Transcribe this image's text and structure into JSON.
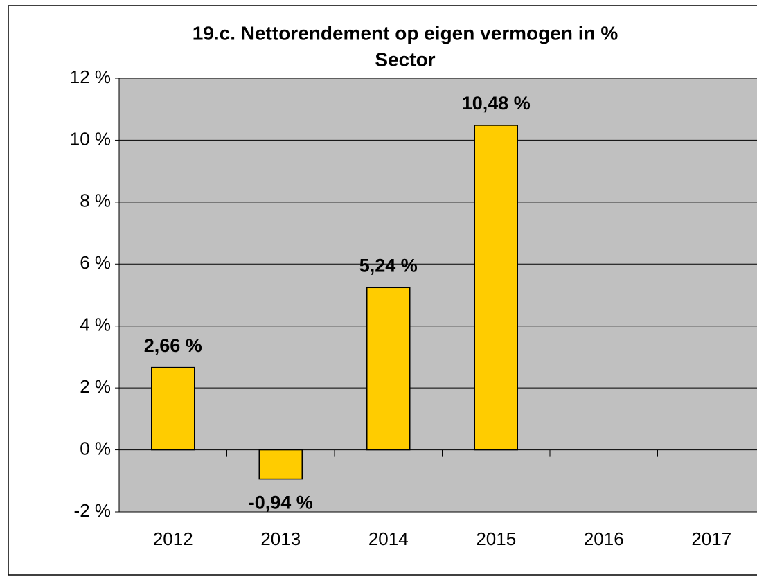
{
  "chart_data": {
    "type": "bar",
    "title": "19.c. Nettorendement op eigen vermogen in %",
    "subtitle": "Sector",
    "categories": [
      "2012",
      "2013",
      "2014",
      "2015",
      "2016",
      "2017"
    ],
    "values": [
      2.66,
      -0.94,
      5.24,
      10.48,
      null,
      null
    ],
    "value_labels": [
      "2,66 %",
      "-0,94 %",
      "5,24 %",
      "10,48 %",
      null,
      null
    ],
    "color": "#ffcc00",
    "background": "#c0c0c0",
    "ylim": [
      -2,
      12
    ],
    "yticks": [
      {
        "value": -2,
        "label": "-2 %"
      },
      {
        "value": 0,
        "label": "0 %"
      },
      {
        "value": 2,
        "label": "2 %"
      },
      {
        "value": 4,
        "label": "4 %"
      },
      {
        "value": 6,
        "label": "6 %"
      },
      {
        "value": 8,
        "label": "8 %"
      },
      {
        "value": 10,
        "label": "10 %"
      },
      {
        "value": 12,
        "label": "12 %"
      }
    ],
    "grid": true
  }
}
